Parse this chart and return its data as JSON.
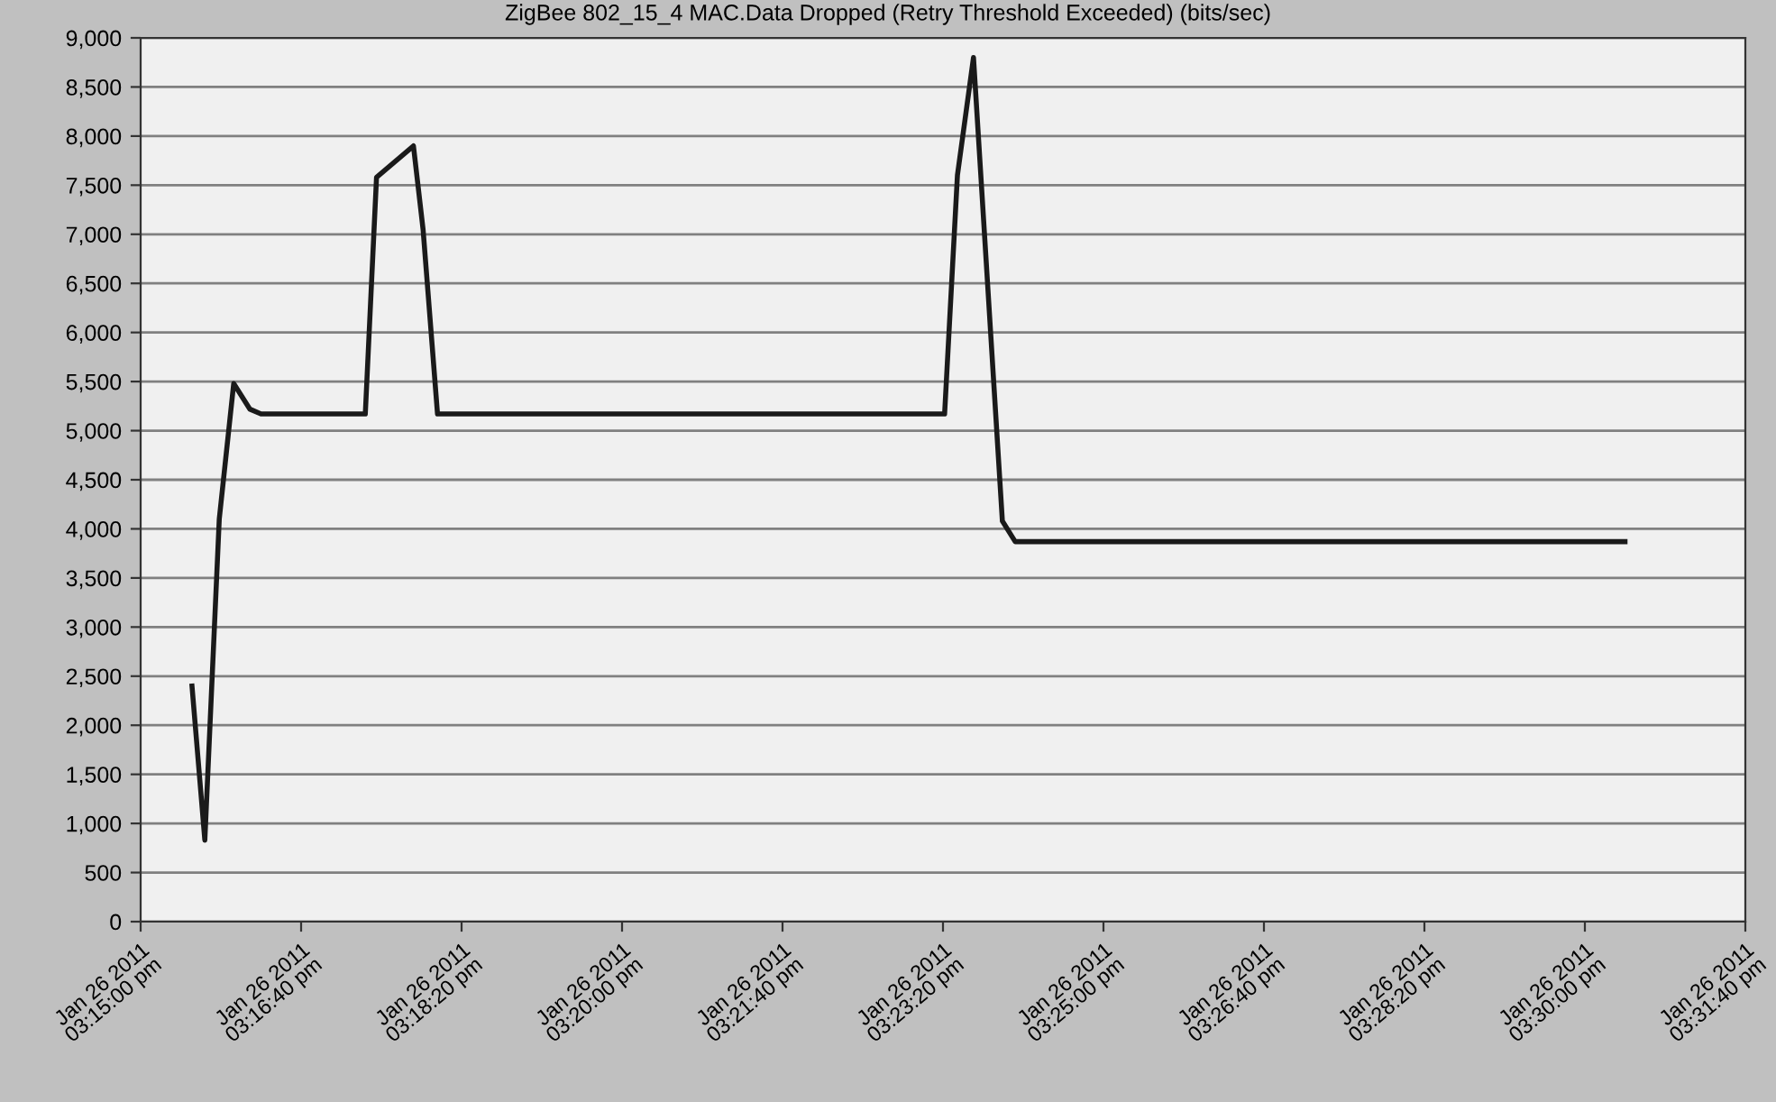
{
  "chart_data": {
    "type": "line",
    "title": "ZigBee 802_15_4 MAC.Data Dropped (Retry Threshold Exceeded) (bits/sec)",
    "x": [
      "2011-01-26T15:15:32",
      "2011-01-26T15:15:40",
      "2011-01-26T15:15:49",
      "2011-01-26T15:15:58",
      "2011-01-26T15:16:08",
      "2011-01-26T15:16:15",
      "2011-01-26T15:17:20",
      "2011-01-26T15:17:27",
      "2011-01-26T15:17:50",
      "2011-01-26T15:17:56",
      "2011-01-26T15:18:05",
      "2011-01-26T15:23:21",
      "2011-01-26T15:23:29",
      "2011-01-26T15:23:39",
      "2011-01-26T15:23:57",
      "2011-01-26T15:24:05",
      "2011-01-26T15:30:25"
    ],
    "series": [
      {
        "color": "#1a1a1a",
        "values": [
          2400,
          830,
          4100,
          5480,
          5220,
          5170,
          5170,
          7580,
          7900,
          7050,
          5170,
          5170,
          7600,
          8800,
          4080,
          3870,
          3870
        ]
      }
    ],
    "xlim": [
      "2011-01-26T15:15:00",
      "2011-01-26T15:31:40"
    ],
    "xticks": [
      {
        "value": "2011-01-26T15:15:00",
        "label": "Jan 26 2011\n03:15:00 pm"
      },
      {
        "value": "2011-01-26T15:16:40",
        "label": "Jan 26 2011\n03:16:40 pm"
      },
      {
        "value": "2011-01-26T15:18:20",
        "label": "Jan 26 2011\n03:18:20 pm"
      },
      {
        "value": "2011-01-26T15:20:00",
        "label": "Jan 26 2011\n03:20:00 pm"
      },
      {
        "value": "2011-01-26T15:21:40",
        "label": "Jan 26 2011\n03:21:40 pm"
      },
      {
        "value": "2011-01-26T15:23:20",
        "label": "Jan 26 2011\n03:23:20 pm"
      },
      {
        "value": "2011-01-26T15:25:00",
        "label": "Jan 26 2011\n03:25:00 pm"
      },
      {
        "value": "2011-01-26T15:26:40",
        "label": "Jan 26 2011\n03:26:40 pm"
      },
      {
        "value": "2011-01-26T15:28:20",
        "label": "Jan 26 2011\n03:28:20 pm"
      },
      {
        "value": "2011-01-26T15:30:00",
        "label": "Jan 26 2011\n03:30:00 pm"
      },
      {
        "value": "2011-01-26T15:31:40",
        "label": "Jan 26 2011\n03:31:40 pm"
      }
    ],
    "ylim": [
      0,
      9000
    ],
    "yticks": [
      {
        "value": 0,
        "label": "0"
      },
      {
        "value": 500,
        "label": "500"
      },
      {
        "value": 1000,
        "label": "1,000"
      },
      {
        "value": 1500,
        "label": "1,500"
      },
      {
        "value": 2000,
        "label": "2,000"
      },
      {
        "value": 2500,
        "label": "2,500"
      },
      {
        "value": 3000,
        "label": "3,000"
      },
      {
        "value": 3500,
        "label": "3,500"
      },
      {
        "value": 4000,
        "label": "4,000"
      },
      {
        "value": 4500,
        "label": "4,500"
      },
      {
        "value": 5000,
        "label": "5,000"
      },
      {
        "value": 5500,
        "label": "5,500"
      },
      {
        "value": 6000,
        "label": "6,000"
      },
      {
        "value": 6500,
        "label": "6,500"
      },
      {
        "value": 7000,
        "label": "7,000"
      },
      {
        "value": 7500,
        "label": "7,500"
      },
      {
        "value": 8000,
        "label": "8,000"
      },
      {
        "value": 8500,
        "label": "8,500"
      },
      {
        "value": 9000,
        "label": "9,000"
      }
    ],
    "grid": "y",
    "marker": "none",
    "line_style": "solid"
  }
}
